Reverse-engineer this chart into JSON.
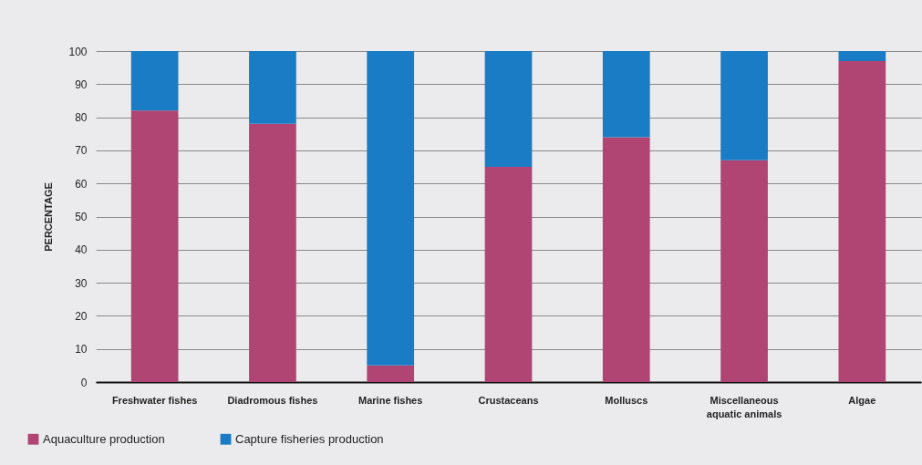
{
  "chart_data": {
    "type": "bar",
    "stacked": true,
    "ylabel": "PERCENTAGE",
    "categories": [
      "Freshwater fishes",
      "Diadromous fishes",
      "Marine fishes",
      "Crustaceans",
      "Molluscs",
      "Miscellaneous aquatic animals",
      "Algae"
    ],
    "series": [
      {
        "name": "Aquaculture production",
        "color": "#b04573",
        "values": [
          82,
          78,
          5,
          65,
          74,
          67,
          97
        ]
      },
      {
        "name": "Capture fisheries production",
        "color": "#1a7cc4",
        "values": [
          18,
          22,
          95,
          35,
          26,
          33,
          3
        ]
      }
    ],
    "ylim": [
      0,
      100
    ],
    "yticks": [
      0,
      10,
      20,
      30,
      40,
      50,
      60,
      70,
      80,
      90,
      100
    ],
    "grid": "y",
    "legend": "bottom left"
  }
}
